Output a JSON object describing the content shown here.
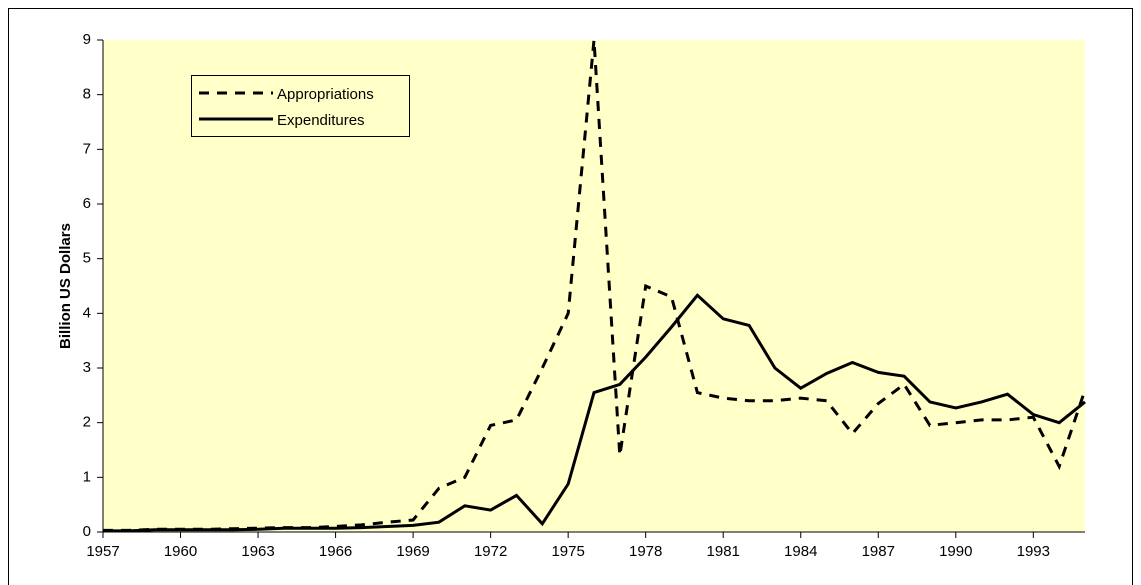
{
  "chart_data": {
    "type": "line",
    "y_label": "Billion US Dollars",
    "x": [
      1957,
      1958,
      1959,
      1960,
      1961,
      1962,
      1963,
      1964,
      1965,
      1966,
      1967,
      1968,
      1969,
      1970,
      1971,
      1972,
      1973,
      1974,
      1975,
      1976,
      1977,
      1978,
      1979,
      1980,
      1981,
      1982,
      1983,
      1984,
      1985,
      1986,
      1987,
      1988,
      1989,
      1990,
      1991,
      1992,
      1993,
      1994,
      1995
    ],
    "series": [
      {
        "name": "Appropriations",
        "color": "#000000",
        "dash": true,
        "values": [
          0.03,
          0.03,
          0.05,
          0.05,
          0.05,
          0.06,
          0.07,
          0.08,
          0.08,
          0.1,
          0.13,
          0.18,
          0.22,
          0.8,
          1.0,
          1.95,
          2.05,
          3.0,
          4.0,
          9.0,
          1.4,
          4.5,
          4.3,
          2.55,
          2.45,
          2.4,
          2.4,
          2.45,
          2.4,
          1.8,
          2.35,
          2.7,
          1.95,
          2.0,
          2.05,
          2.05,
          2.1,
          1.2,
          2.6
        ]
      },
      {
        "name": "Expenditures",
        "color": "#000000",
        "dash": false,
        "values": [
          0.02,
          0.02,
          0.04,
          0.04,
          0.04,
          0.04,
          0.05,
          0.07,
          0.07,
          0.07,
          0.08,
          0.1,
          0.12,
          0.18,
          0.48,
          0.4,
          0.67,
          0.15,
          0.88,
          2.55,
          2.7,
          3.2,
          3.75,
          4.33,
          3.9,
          3.78,
          3.0,
          2.63,
          2.9,
          3.1,
          2.92,
          2.85,
          2.38,
          2.27,
          2.38,
          2.52,
          2.15,
          2.0,
          2.38
        ]
      }
    ],
    "xlim": [
      1957,
      1995
    ],
    "xticks": [
      1957,
      1960,
      1963,
      1966,
      1969,
      1972,
      1975,
      1978,
      1981,
      1984,
      1987,
      1990,
      1993
    ],
    "ylim": [
      0,
      9
    ],
    "yticks": [
      0,
      1,
      2,
      3,
      4,
      5,
      6,
      7,
      8,
      9
    ],
    "background": "#ffffc8"
  }
}
